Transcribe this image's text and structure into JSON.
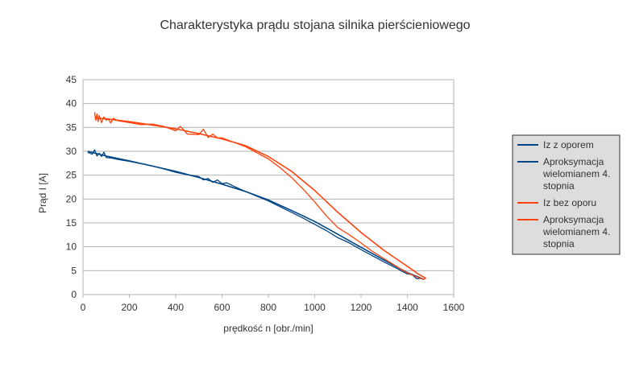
{
  "chart_data": {
    "type": "line",
    "title": "Charakterystyka prądu stojana silnika pierścieniowego",
    "xlabel": "prędkość n [obr./min]",
    "ylabel": "Prąd I [A]",
    "xlim": [
      0,
      1600
    ],
    "ylim": [
      0,
      45
    ],
    "xticks": [
      0,
      200,
      400,
      600,
      800,
      1000,
      1200,
      1400,
      1600
    ],
    "yticks": [
      0,
      5,
      10,
      15,
      20,
      25,
      30,
      35,
      40,
      45
    ],
    "grid": "horizontal",
    "legend_position": "right",
    "series": [
      {
        "name": "Iz z oporem",
        "color": "#004586",
        "x": [
          20,
          40,
          50,
          60,
          70,
          80,
          90,
          100,
          120,
          150,
          200,
          250,
          300,
          350,
          400,
          450,
          500,
          520,
          540,
          560,
          580,
          600,
          620,
          650,
          700,
          750,
          800,
          850,
          900,
          950,
          1000,
          1050,
          1100,
          1150,
          1200,
          1250,
          1300,
          1350,
          1400,
          1420,
          1440,
          1460,
          1470
        ],
        "y": [
          29.8,
          29.4,
          30.3,
          29.0,
          29.6,
          28.9,
          29.8,
          28.7,
          28.6,
          28.3,
          27.9,
          27.4,
          26.9,
          26.3,
          25.6,
          25.1,
          24.7,
          24.0,
          24.3,
          23.5,
          24.0,
          23.2,
          23.4,
          22.7,
          21.6,
          20.6,
          19.6,
          18.4,
          17.2,
          16.0,
          14.7,
          13.4,
          11.9,
          10.8,
          9.4,
          8.1,
          6.8,
          5.6,
          4.3,
          4.2,
          3.3,
          3.4,
          3.1
        ]
      },
      {
        "name": "Aproksymacja wielomianem 4. stopnia",
        "color": "#004586",
        "x": [
          20,
          100,
          200,
          300,
          400,
          500,
          600,
          700,
          800,
          900,
          1000,
          1100,
          1200,
          1300,
          1400,
          1450,
          1470
        ],
        "y": [
          30.0,
          29.0,
          28.0,
          26.9,
          25.8,
          24.5,
          23.1,
          21.6,
          19.8,
          17.6,
          15.3,
          12.6,
          9.9,
          7.2,
          4.6,
          3.6,
          3.2
        ]
      },
      {
        "name": "Iz bez oporu",
        "color": "#ff420e",
        "x": [
          50,
          55,
          60,
          65,
          70,
          80,
          90,
          100,
          110,
          120,
          130,
          150,
          200,
          250,
          300,
          350,
          400,
          420,
          440,
          450,
          500,
          520,
          540,
          560,
          580,
          600,
          650,
          700,
          750,
          800,
          850,
          900,
          950,
          1000,
          1050,
          1100,
          1150,
          1200,
          1250,
          1300,
          1350,
          1400,
          1450,
          1470,
          1480
        ],
        "y": [
          38.2,
          36.5,
          37.8,
          36.2,
          37.5,
          36.0,
          37.2,
          36.5,
          36.8,
          35.9,
          36.9,
          36.4,
          36.0,
          35.6,
          35.7,
          35.2,
          34.3,
          35.2,
          34.2,
          33.6,
          33.5,
          34.6,
          32.9,
          33.6,
          32.8,
          32.8,
          31.9,
          31.0,
          29.7,
          28.4,
          26.6,
          24.5,
          22.1,
          19.4,
          16.5,
          14.0,
          12.5,
          10.8,
          9.0,
          7.5,
          6.0,
          4.5,
          3.5,
          3.2,
          3.4
        ]
      },
      {
        "name": "Aproksymacja wielomianem 4. stopnia",
        "color": "#ff420e",
        "x": [
          50,
          100,
          200,
          300,
          400,
          500,
          600,
          700,
          800,
          900,
          1000,
          1100,
          1200,
          1300,
          1400,
          1450,
          1480
        ],
        "y": [
          37.0,
          36.8,
          36.2,
          35.5,
          34.7,
          33.7,
          32.6,
          31.2,
          28.9,
          25.8,
          21.8,
          17.2,
          13.0,
          9.2,
          5.9,
          4.2,
          3.4
        ]
      }
    ]
  },
  "legend": {
    "items": [
      {
        "label": "Iz z oporem",
        "color": "#004586"
      },
      {
        "label": "Aproksymacja wielomianem 4. stopnia",
        "color": "#004586"
      },
      {
        "label": "Iz bez oporu",
        "color": "#ff420e"
      },
      {
        "label": "Aproksymacja wielomianem 4. stopnia",
        "color": "#ff420e"
      }
    ]
  }
}
